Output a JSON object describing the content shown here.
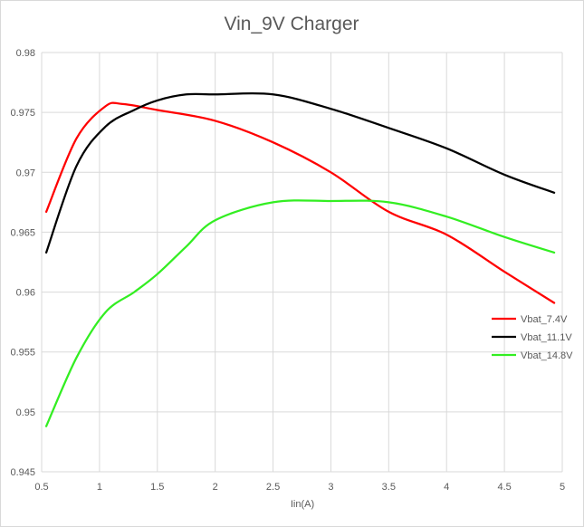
{
  "chart_data": {
    "type": "line",
    "title": "Vin_9V Charger",
    "xlabel": "Iin(A)",
    "ylabel": "",
    "xlim": [
      0.5,
      5
    ],
    "ylim": [
      0.945,
      0.98
    ],
    "x_ticks": [
      "0.5",
      "1",
      "1.5",
      "2",
      "2.5",
      "3",
      "3.5",
      "4",
      "4.5",
      "5"
    ],
    "y_ticks": [
      "0.945",
      "0.95",
      "0.955",
      "0.96",
      "0.965",
      "0.97",
      "0.975",
      "0.98"
    ],
    "grid": true,
    "legend_position": "right",
    "series": [
      {
        "name": "Vbat_7.4V",
        "color": "#ff0000",
        "x": [
          0.54,
          0.8,
          1.05,
          1.2,
          1.5,
          2.0,
          2.5,
          3.0,
          3.5,
          4.0,
          4.5,
          4.93
        ],
        "y": [
          0.9667,
          0.9728,
          0.9755,
          0.9757,
          0.9752,
          0.9743,
          0.9725,
          0.97,
          0.9667,
          0.9648,
          0.9617,
          0.9591
        ]
      },
      {
        "name": "Vbat_11.1V",
        "color": "#000000",
        "x": [
          0.54,
          0.8,
          1.05,
          1.3,
          1.5,
          1.75,
          2.0,
          2.5,
          3.0,
          3.5,
          4.0,
          4.5,
          4.93
        ],
        "y": [
          0.9633,
          0.9705,
          0.9738,
          0.9752,
          0.976,
          0.9765,
          0.9765,
          0.9765,
          0.9753,
          0.9737,
          0.972,
          0.9698,
          0.9683
        ]
      },
      {
        "name": "Vbat_14.8V",
        "color": "#33ee22",
        "x": [
          0.54,
          0.8,
          1.05,
          1.3,
          1.5,
          1.75,
          2.0,
          2.5,
          3.0,
          3.5,
          4.0,
          4.5,
          4.93
        ],
        "y": [
          0.9488,
          0.9545,
          0.9583,
          0.96,
          0.9615,
          0.9638,
          0.966,
          0.9675,
          0.9676,
          0.9675,
          0.9663,
          0.9646,
          0.9633
        ]
      }
    ]
  }
}
